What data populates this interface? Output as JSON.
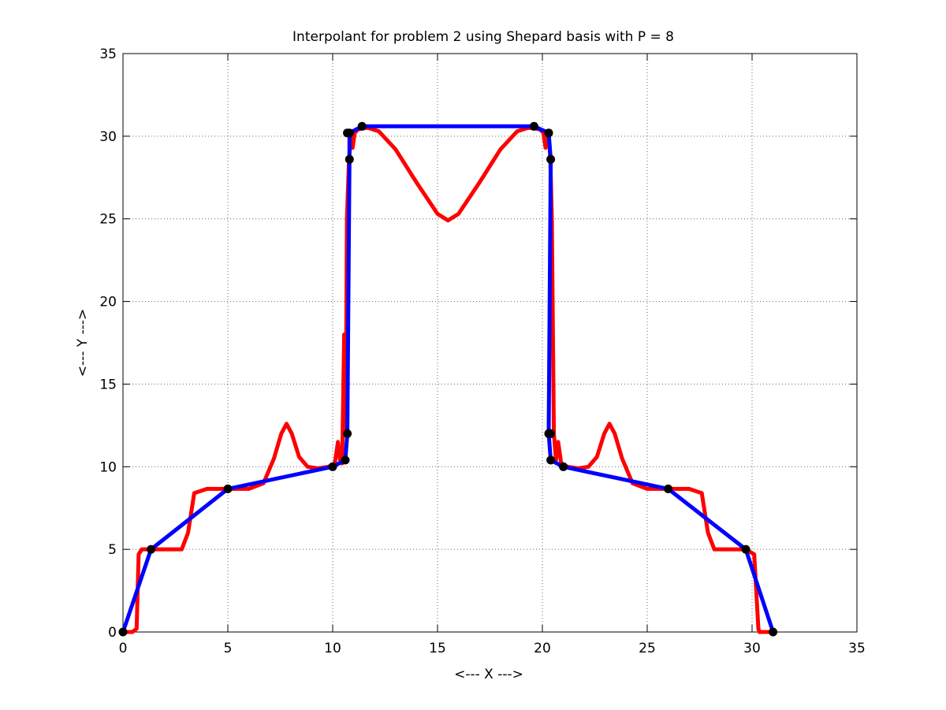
{
  "chart_data": {
    "type": "line",
    "title": "Interpolant for problem 2 using Shepard basis with P = 8",
    "xlabel": "<--- X --->",
    "ylabel": "<--- Y --->",
    "xlim": [
      0,
      35
    ],
    "ylim": [
      0,
      35
    ],
    "xticks": [
      0,
      5,
      10,
      15,
      20,
      25,
      30,
      35
    ],
    "yticks": [
      0,
      5,
      10,
      15,
      20,
      25,
      30,
      35
    ],
    "grid": true,
    "legend": "none",
    "colors": {
      "shepard": "#ff0000",
      "piecewise_linear": "#0000ff",
      "data_points": "#000000"
    },
    "data_points": {
      "x": [
        0,
        1.34,
        5,
        10,
        10.6,
        10.7,
        10.8,
        10.8,
        10.7,
        11.4,
        19.6,
        20.3,
        20.4,
        20.4,
        20.3,
        20.4,
        21,
        26,
        29.7,
        31
      ],
      "y": [
        0,
        5,
        8.66,
        10,
        10.4,
        12,
        28.6,
        30.2,
        30.2,
        30.6,
        30.6,
        30.2,
        28.6,
        12,
        12,
        10.4,
        10,
        8.66,
        5,
        0
      ]
    },
    "series": [
      {
        "key": "shepard",
        "style": "red-thick",
        "x": [
          0.2,
          0.45,
          0.65,
          0.75,
          0.9,
          1.3,
          2,
          2.8,
          3.1,
          3.4,
          4,
          5,
          6,
          6.7,
          7.2,
          7.55,
          7.8,
          8.05,
          8.4,
          8.8,
          9.3,
          9.8,
          10.1,
          10.25,
          10.35,
          10.45,
          10.55,
          10.62,
          10.68,
          10.78,
          10.85,
          10.9,
          10.95,
          11.05,
          11.2,
          11.4,
          11.7,
          12.2,
          13,
          14,
          15,
          15.5,
          16,
          17,
          18,
          18.8,
          19.3,
          19.6,
          19.9,
          20.05,
          20.15,
          20.25,
          20.32,
          20.38,
          20.45,
          20.55,
          20.65,
          20.75,
          20.9,
          21.2,
          21.7,
          22.2,
          22.6,
          22.95,
          23.2,
          23.45,
          23.8,
          24.3,
          25,
          26,
          27,
          27.6,
          27.9,
          28.2,
          29,
          29.7,
          30.1,
          30.3,
          30.35,
          30.45,
          30.55,
          30.8
        ],
        "y": [
          0,
          0,
          0.2,
          4.7,
          5,
          5,
          5,
          5,
          6,
          8.4,
          8.66,
          8.66,
          8.66,
          9,
          10.5,
          12,
          12.6,
          12,
          10.6,
          10,
          9.9,
          10,
          10.2,
          11.5,
          10.4,
          10.2,
          18,
          12,
          25,
          28.6,
          29.7,
          30.2,
          29.3,
          30.2,
          30.4,
          30.5,
          30.5,
          30.3,
          29.2,
          27.2,
          25.3,
          24.9,
          25.3,
          27.2,
          29.2,
          30.3,
          30.5,
          30.5,
          30.4,
          30.2,
          29.3,
          30.2,
          29.7,
          28.6,
          25,
          12,
          10.4,
          11.5,
          10.2,
          10,
          9.9,
          10,
          10.6,
          12,
          12.6,
          12,
          10.5,
          9,
          8.66,
          8.66,
          8.66,
          8.4,
          6,
          5,
          5,
          5,
          4.7,
          0.2,
          0,
          0,
          0,
          0
        ]
      },
      {
        "key": "piecewise_linear",
        "style": "blue-thick",
        "x": [
          0,
          1.34,
          5,
          10,
          10.6,
          10.7,
          10.8,
          10.8,
          11.4,
          19.6,
          20.3,
          20.4,
          20.3,
          20.4,
          21,
          26,
          29.7,
          31
        ],
        "y": [
          0,
          5,
          8.66,
          10,
          10.4,
          12,
          28.6,
          30.2,
          30.6,
          30.6,
          30.2,
          28.6,
          12,
          10.4,
          10,
          8.66,
          5,
          0
        ]
      }
    ]
  }
}
